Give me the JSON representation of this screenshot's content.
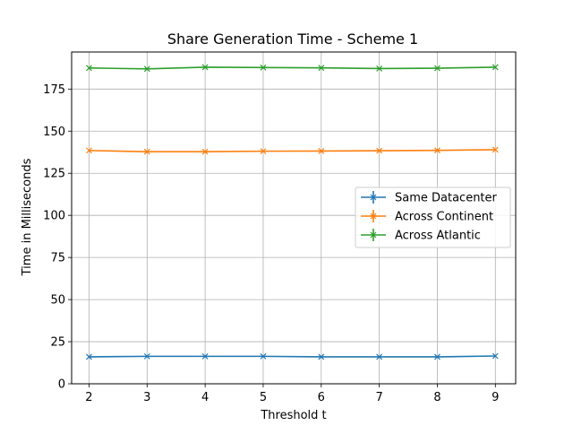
{
  "chart_data": {
    "type": "line",
    "title": "Share Generation Time - Scheme 1",
    "xlabel": "Threshold t",
    "ylabel": "Time in Milliseconds",
    "x": [
      2,
      3,
      4,
      5,
      6,
      7,
      8,
      9
    ],
    "xlim": [
      1.7,
      9.35
    ],
    "ylim": [
      0,
      197
    ],
    "xticks": [
      2,
      3,
      4,
      5,
      6,
      7,
      8,
      9
    ],
    "yticks": [
      0,
      25,
      50,
      75,
      100,
      125,
      150,
      175
    ],
    "grid": true,
    "legend_position": "center-right",
    "series": [
      {
        "name": "Same Datacenter",
        "color": "#1f77b4",
        "values": [
          16.0,
          16.3,
          16.3,
          16.3,
          16.0,
          16.0,
          16.0,
          16.5
        ]
      },
      {
        "name": "Across Continent",
        "color": "#ff7f0e",
        "values": [
          138.5,
          137.8,
          137.8,
          138.1,
          138.2,
          138.4,
          138.6,
          139.0
        ]
      },
      {
        "name": "Across Atlantic",
        "color": "#2ca02c",
        "values": [
          187.5,
          187.0,
          188.0,
          187.8,
          187.6,
          187.2,
          187.4,
          188.0
        ]
      }
    ]
  }
}
